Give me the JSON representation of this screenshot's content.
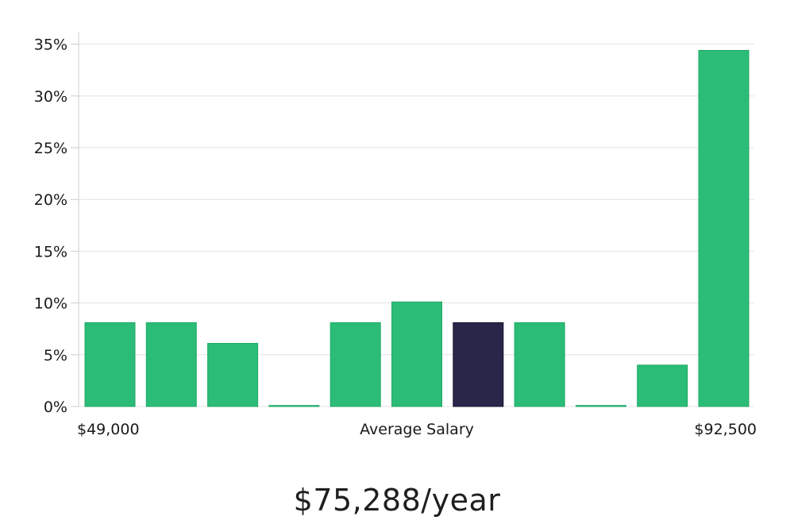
{
  "chart_data": {
    "type": "bar",
    "categories": [
      "bin-1",
      "bin-2",
      "bin-3",
      "bin-4",
      "bin-5",
      "bin-6",
      "bin-7",
      "bin-8",
      "bin-9",
      "bin-10",
      "bin-11"
    ],
    "values": [
      8.1,
      8.1,
      6.1,
      0.1,
      8.1,
      10.1,
      8.1,
      8.1,
      0.1,
      4.0,
      34.4
    ],
    "highlight_index": 6,
    "y_tick_labels": [
      "0%",
      "5%",
      "10%",
      "15%",
      "20%",
      "25%",
      "30%",
      "35%"
    ],
    "y_ticks": [
      0,
      5,
      10,
      15,
      20,
      25,
      30,
      35
    ],
    "ylim": [
      0,
      36.2
    ],
    "x_min_label": "$49,000",
    "x_center_label": "Average Salary",
    "x_max_label": "$92,500",
    "grid": true,
    "colors": {
      "bar": "#2bbd77",
      "bar_highlight": "#29264a",
      "grid": "#e3e3e3",
      "axis": "#cccccc"
    }
  },
  "salary_label": "$75,288/year"
}
